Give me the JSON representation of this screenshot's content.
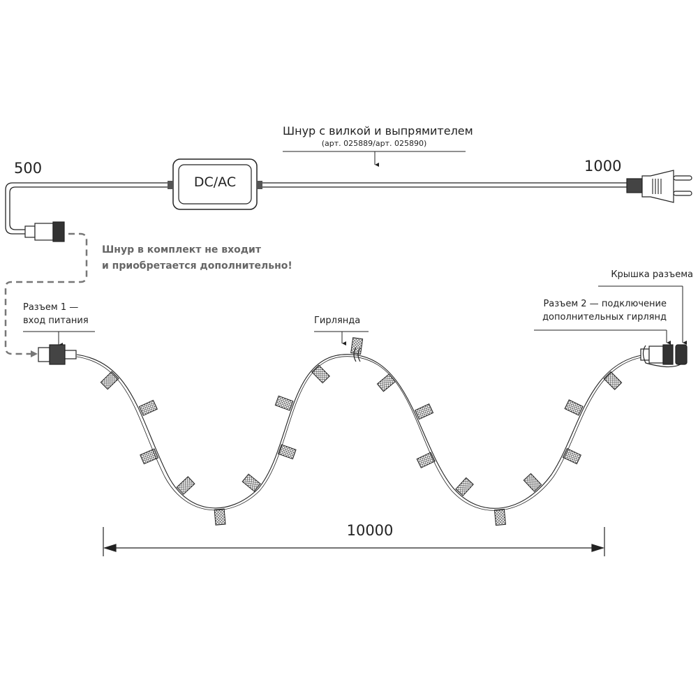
{
  "cord": {
    "title": "Шнур с вилкой и выпрямителем",
    "article": "(арт. 025889/арт. 025890)",
    "length_left": "500",
    "length_right": "1000",
    "rectifier_label": "DC/AC"
  },
  "note": {
    "line1": "Шнур в комплект не входит",
    "line2": "и приобретается дополнительно!"
  },
  "connector1": {
    "line1": "Разъем 1 —",
    "line2": "вход питания"
  },
  "garland": {
    "label": "Гирлянда"
  },
  "connector2": {
    "line1": "Разъем 2 — подключение",
    "line2": "дополнительных гирлянд"
  },
  "cap": {
    "label": "Крышка разъема"
  },
  "dimension": {
    "length": "10000"
  },
  "colors": {
    "line": "#222222",
    "dashed": "#777777",
    "note": "#666666"
  }
}
